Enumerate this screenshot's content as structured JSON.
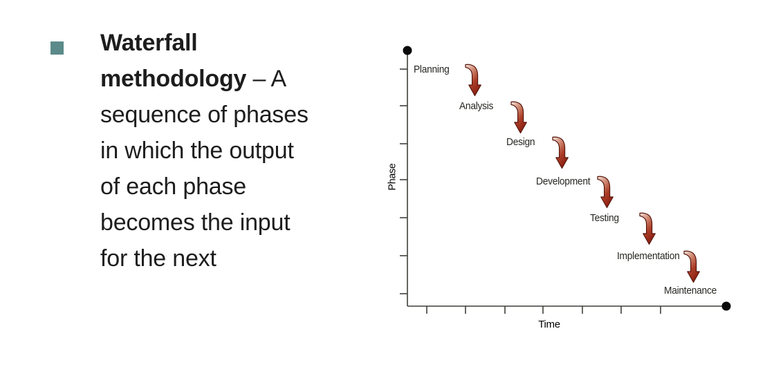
{
  "slide": {
    "background_color": "#ffffff",
    "bullet": {
      "marker_color": "#5C8A8A",
      "text_color": "#1D1D1D",
      "lines": [
        [
          {
            "text": "Waterfall",
            "bold": true
          }
        ],
        [
          {
            "text": "methodology",
            "bold": true
          },
          {
            "text": " – A",
            "bold": false
          }
        ],
        [
          {
            "text": "sequence of phases",
            "bold": false
          }
        ],
        [
          {
            "text": "in which the output",
            "bold": false
          }
        ],
        [
          {
            "text": "of each phase",
            "bold": false
          }
        ],
        [
          {
            "text": "becomes the input",
            "bold": false
          }
        ],
        [
          {
            "text": "for the next",
            "bold": false
          }
        ]
      ]
    }
  },
  "figure": {
    "type": "waterfall-phase-diagram",
    "ylabel": "Phase",
    "xlabel": "Time",
    "phases": [
      "Planning",
      "Analysis",
      "Design",
      "Development",
      "Testing",
      "Implementation",
      "Maintenance"
    ],
    "arrows_between_phases": true,
    "y_tick_count": 7,
    "x_tick_count": 7,
    "axis_color": "#3F3F3A",
    "label_color": "#262622",
    "endpoint_dot_color": "#0A0A0A",
    "arrow_gradient": [
      "#F6E4DC",
      "#D08A74",
      "#AC3D28",
      "#8C2013"
    ],
    "arrow_outline": "#55150B"
  }
}
